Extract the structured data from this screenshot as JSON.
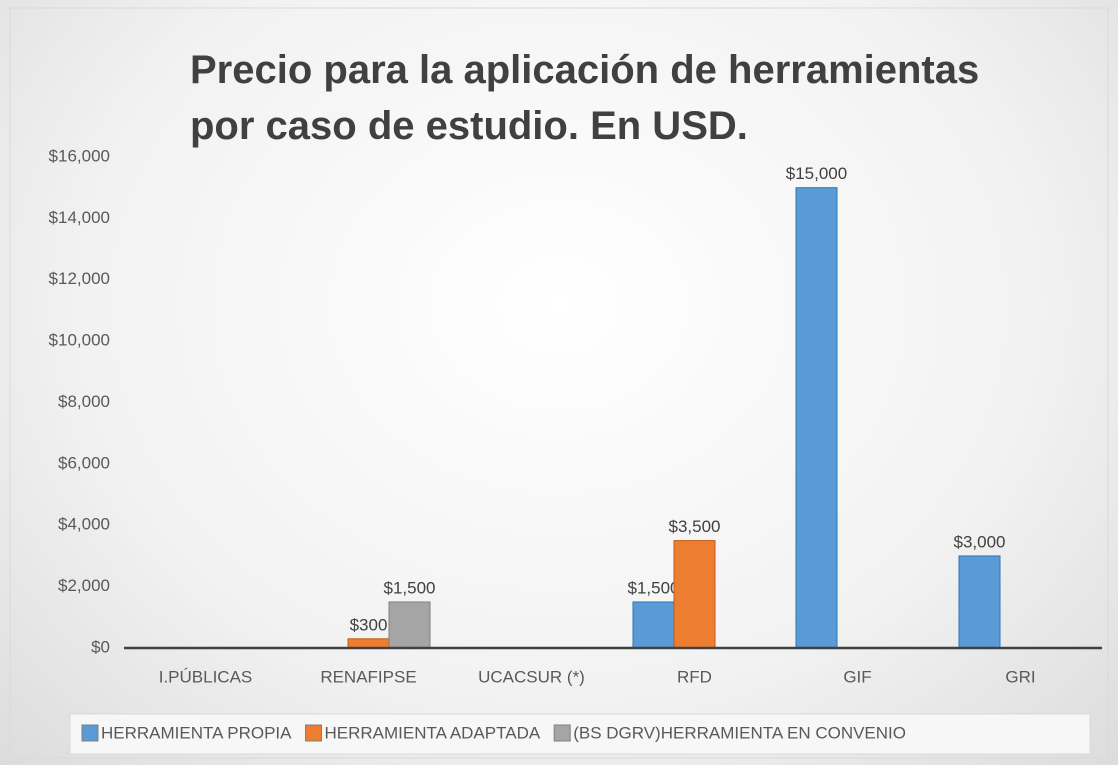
{
  "chart_data": {
    "type": "bar",
    "title": "Precio para la aplicación de herramientas por caso de estudio. En USD.",
    "categories": [
      "I.PÚBLICAS",
      "RENAFIPSE",
      "UCACSUR (*)",
      "RFD",
      "GIF",
      "GRI"
    ],
    "series": [
      {
        "name": "HERRAMIENTA PROPIA",
        "color": "#5b9bd5",
        "values": [
          0,
          0,
          0,
          1500,
          15000,
          3000
        ],
        "value_labels": [
          null,
          null,
          null,
          "$1,500",
          "$15,000",
          "$3,000"
        ]
      },
      {
        "name": "HERRAMIENTA ADAPTADA",
        "color": "#ed7d31",
        "values": [
          0,
          300,
          0,
          3500,
          0,
          0
        ],
        "value_labels": [
          null,
          "$300",
          null,
          "$3,500",
          null,
          null
        ]
      },
      {
        "name": "(BS DGRV)HERRAMIENTA EN CONVENIO",
        "color": "#a5a5a5",
        "values": [
          0,
          1500,
          0,
          0,
          0,
          0
        ],
        "value_labels": [
          null,
          "$1,500",
          null,
          null,
          null,
          null
        ]
      }
    ],
    "ylim": [
      0,
      16000
    ],
    "yticks": [
      {
        "value": 0,
        "label": "$0"
      },
      {
        "value": 2000,
        "label": "$2,000"
      },
      {
        "value": 4000,
        "label": "$4,000"
      },
      {
        "value": 6000,
        "label": "$6,000"
      },
      {
        "value": 8000,
        "label": "$8,000"
      },
      {
        "value": 10000,
        "label": "$10,000"
      },
      {
        "value": 12000,
        "label": "$12,000"
      },
      {
        "value": 14000,
        "label": "$14,000"
      },
      {
        "value": 16000,
        "label": "$16,000"
      }
    ],
    "grid": false,
    "legend": "bottom"
  }
}
